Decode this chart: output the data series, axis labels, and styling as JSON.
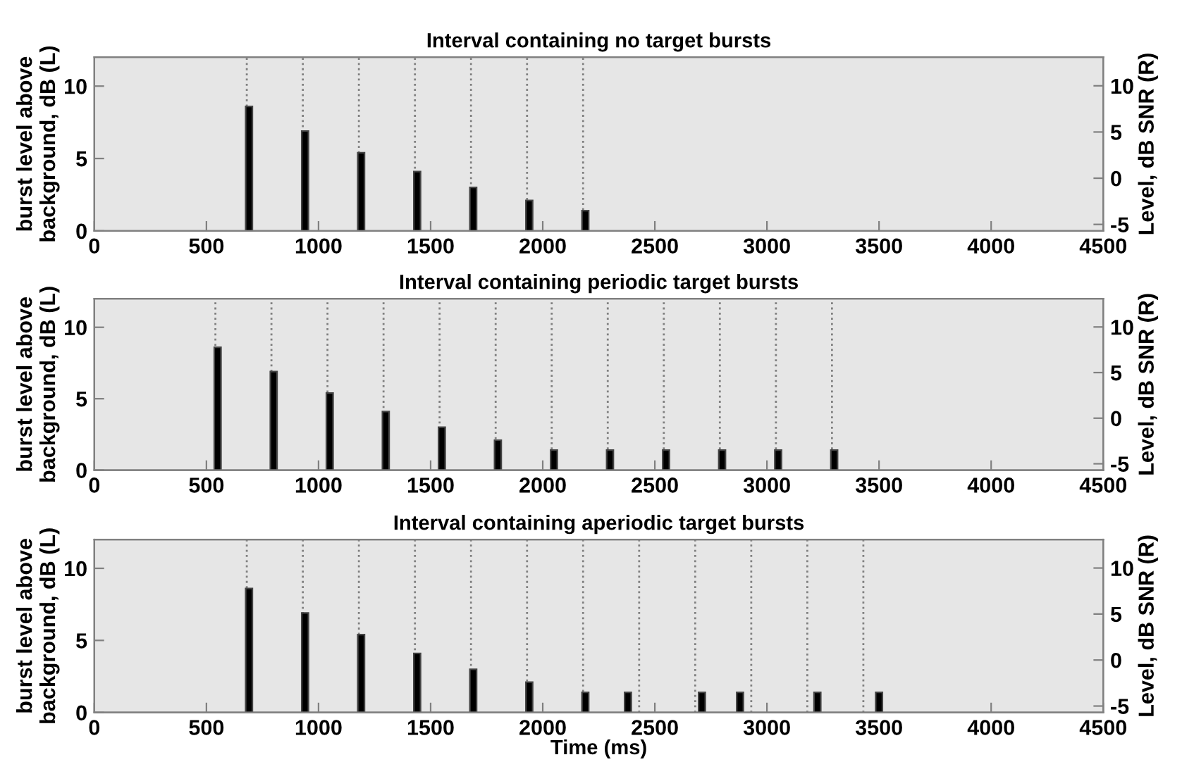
{
  "chart_data": [
    {
      "type": "bar",
      "title": "Interval containing no target bursts",
      "ylabel": "burst level above\nbackground, dB (L)",
      "y2label": "Level, dB SNR (R)",
      "x": [
        690,
        940,
        1190,
        1440,
        1690,
        1940,
        2190
      ],
      "values": [
        8.6,
        6.9,
        5.4,
        4.1,
        3.0,
        2.1,
        1.4
      ],
      "color": "#000000",
      "xlim": [
        0,
        4500
      ],
      "xticks": [
        0,
        500,
        1000,
        1500,
        2000,
        2500,
        3000,
        3500,
        4000,
        4500
      ],
      "ylim": [
        0,
        12
      ],
      "yticks": [
        0,
        5,
        10
      ],
      "y2lim": [
        -5.7,
        13.1
      ],
      "y2ticks": [
        -5,
        0,
        5,
        10
      ],
      "ref_lines": [
        {
          "axis": "x",
          "value": 680,
          "line_style": "dotted",
          "color": "#808080"
        },
        {
          "axis": "x",
          "value": 930,
          "line_style": "dotted",
          "color": "#808080"
        },
        {
          "axis": "x",
          "value": 1180,
          "line_style": "dotted",
          "color": "#808080"
        },
        {
          "axis": "x",
          "value": 1430,
          "line_style": "dotted",
          "color": "#808080"
        },
        {
          "axis": "x",
          "value": 1680,
          "line_style": "dotted",
          "color": "#808080"
        },
        {
          "axis": "x",
          "value": 1930,
          "line_style": "dotted",
          "color": "#808080"
        },
        {
          "axis": "x",
          "value": 2180,
          "line_style": "dotted",
          "color": "#808080"
        }
      ],
      "grid": false,
      "legend": false
    },
    {
      "type": "bar",
      "title": "Interval containing periodic target bursts",
      "ylabel": "burst level above\nbackground, dB (L)",
      "y2label": "Level, dB SNR (R)",
      "x": [
        550,
        800,
        1050,
        1300,
        1550,
        1800,
        2050,
        2300,
        2550,
        2800,
        3050,
        3300
      ],
      "values": [
        8.6,
        6.9,
        5.4,
        4.1,
        3.0,
        2.1,
        1.4,
        1.4,
        1.4,
        1.4,
        1.4,
        1.4
      ],
      "color": "#000000",
      "xlim": [
        0,
        4500
      ],
      "xticks": [
        0,
        500,
        1000,
        1500,
        2000,
        2500,
        3000,
        3500,
        4000,
        4500
      ],
      "ylim": [
        0,
        12
      ],
      "yticks": [
        0,
        5,
        10
      ],
      "y2lim": [
        -5.7,
        13.1
      ],
      "y2ticks": [
        -5,
        0,
        5,
        10
      ],
      "ref_lines": [
        {
          "axis": "x",
          "value": 540,
          "line_style": "dotted",
          "color": "#808080"
        },
        {
          "axis": "x",
          "value": 790,
          "line_style": "dotted",
          "color": "#808080"
        },
        {
          "axis": "x",
          "value": 1040,
          "line_style": "dotted",
          "color": "#808080"
        },
        {
          "axis": "x",
          "value": 1290,
          "line_style": "dotted",
          "color": "#808080"
        },
        {
          "axis": "x",
          "value": 1540,
          "line_style": "dotted",
          "color": "#808080"
        },
        {
          "axis": "x",
          "value": 1790,
          "line_style": "dotted",
          "color": "#808080"
        },
        {
          "axis": "x",
          "value": 2040,
          "line_style": "dotted",
          "color": "#808080"
        },
        {
          "axis": "x",
          "value": 2290,
          "line_style": "dotted",
          "color": "#808080"
        },
        {
          "axis": "x",
          "value": 2540,
          "line_style": "dotted",
          "color": "#808080"
        },
        {
          "axis": "x",
          "value": 2790,
          "line_style": "dotted",
          "color": "#808080"
        },
        {
          "axis": "x",
          "value": 3040,
          "line_style": "dotted",
          "color": "#808080"
        },
        {
          "axis": "x",
          "value": 3290,
          "line_style": "dotted",
          "color": "#808080"
        }
      ],
      "grid": false,
      "legend": false
    },
    {
      "type": "bar",
      "title": "Interval containing aperiodic target bursts",
      "xlabel": "Time (ms)",
      "ylabel": "burst level above\nbackground, dB (L)",
      "y2label": "Level, dB SNR (R)",
      "x": [
        690,
        940,
        1190,
        1440,
        1690,
        1940,
        2190,
        2380,
        2710,
        2880,
        3225,
        3500
      ],
      "values": [
        8.6,
        6.9,
        5.4,
        4.1,
        3.0,
        2.1,
        1.4,
        1.4,
        1.4,
        1.4,
        1.4,
        1.4
      ],
      "color": "#000000",
      "xlim": [
        0,
        4500
      ],
      "xticks": [
        0,
        500,
        1000,
        1500,
        2000,
        2500,
        3000,
        3500,
        4000,
        4500
      ],
      "ylim": [
        0,
        12
      ],
      "yticks": [
        0,
        5,
        10
      ],
      "y2lim": [
        -5.7,
        13.1
      ],
      "y2ticks": [
        -5,
        0,
        5,
        10
      ],
      "ref_lines": [
        {
          "axis": "x",
          "value": 680,
          "line_style": "dotted",
          "color": "#808080"
        },
        {
          "axis": "x",
          "value": 930,
          "line_style": "dotted",
          "color": "#808080"
        },
        {
          "axis": "x",
          "value": 1180,
          "line_style": "dotted",
          "color": "#808080"
        },
        {
          "axis": "x",
          "value": 1430,
          "line_style": "dotted",
          "color": "#808080"
        },
        {
          "axis": "x",
          "value": 1680,
          "line_style": "dotted",
          "color": "#808080"
        },
        {
          "axis": "x",
          "value": 1930,
          "line_style": "dotted",
          "color": "#808080"
        },
        {
          "axis": "x",
          "value": 2180,
          "line_style": "dotted",
          "color": "#808080"
        },
        {
          "axis": "x",
          "value": 2430,
          "line_style": "dotted",
          "color": "#808080"
        },
        {
          "axis": "x",
          "value": 2680,
          "line_style": "dotted",
          "color": "#808080"
        },
        {
          "axis": "x",
          "value": 2930,
          "line_style": "dotted",
          "color": "#808080"
        },
        {
          "axis": "x",
          "value": 3180,
          "line_style": "dotted",
          "color": "#808080"
        },
        {
          "axis": "x",
          "value": 3430,
          "line_style": "dotted",
          "color": "#808080"
        }
      ],
      "grid": false,
      "legend": false
    }
  ]
}
